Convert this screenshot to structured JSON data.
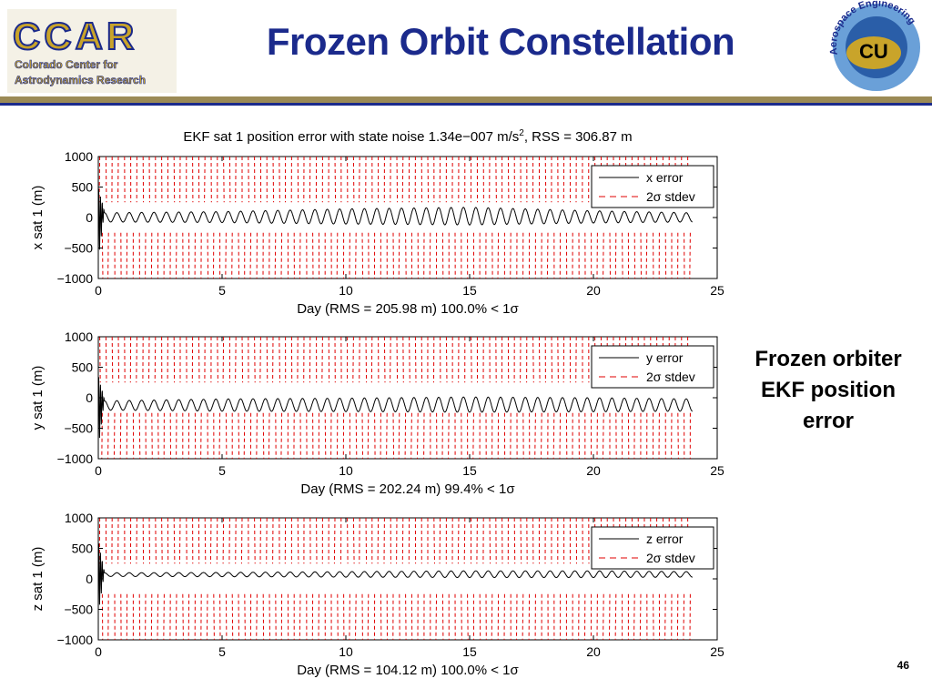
{
  "slide": {
    "title": "Frozen Orbit Constellation",
    "caption_lines": [
      "Frozen orbiter",
      "EKF position",
      "error"
    ],
    "page_number": "46"
  },
  "logos": {
    "ccar": {
      "name": "CCAR",
      "subtitle_lines": [
        "Colorado Center for",
        "Astrodynamics Research"
      ]
    },
    "cu": {
      "initials": "CU",
      "ring_text": "Aerospace Engineering"
    }
  },
  "colors": {
    "title_blue": "#1b2a8c",
    "gold": "#c9a42a",
    "error_line": "#000000",
    "stdev_line": "#e00000"
  },
  "figure": {
    "title_main": "EKF sat 1 position error with state noise 1.34e−007 m/s",
    "title_sup": "2",
    "title_tail": ", RSS = 306.87 m"
  },
  "chart_data": [
    {
      "type": "line",
      "ylabel": "x sat 1 (m)",
      "xlabel": "Day (RMS = 205.98 m) 100.0% < 1σ",
      "xlim": [
        0,
        25
      ],
      "ylim": [
        -1000,
        1000
      ],
      "x_ticks": [
        "0",
        "5",
        "10",
        "15",
        "20",
        "25"
      ],
      "y_ticks": [
        "1000",
        "500",
        "0",
        "−500",
        "−1000"
      ],
      "grid": false,
      "legend_position": "top-right",
      "series": [
        {
          "name": "x error",
          "style": "solid",
          "day_start": 0,
          "day_end": 24,
          "oscillation_period_days": 0.5,
          "envelope_points": [
            [
              0,
              150
            ],
            [
              5,
              180
            ],
            [
              10,
              250
            ],
            [
              15,
              290
            ],
            [
              20,
              200
            ],
            [
              24,
              150
            ]
          ],
          "offset": -20
        },
        {
          "name": "2σ stdev",
          "style": "dashed",
          "day_start": 0,
          "day_end": 24,
          "band_upper": [
            [
              0,
              1000
            ],
            [
              24,
              300
            ]
          ],
          "band_lower": [
            [
              0,
              -200
            ],
            [
              24,
              -1000
            ]
          ]
        }
      ]
    },
    {
      "type": "line",
      "ylabel": "y sat 1 (m)",
      "xlabel": "Day (RMS = 202.24 m) 99.4% < 1σ",
      "xlim": [
        0,
        25
      ],
      "ylim": [
        -1000,
        1000
      ],
      "x_ticks": [
        "0",
        "5",
        "10",
        "15",
        "20",
        "25"
      ],
      "y_ticks": [
        "1000",
        "500",
        "0",
        "−500",
        "−1000"
      ],
      "grid": false,
      "legend_position": "top-right",
      "series": [
        {
          "name": "y error",
          "style": "solid",
          "day_start": 0,
          "day_end": 24,
          "oscillation_period_days": 0.5,
          "envelope_points": [
            [
              0,
              150
            ],
            [
              5,
              200
            ],
            [
              10,
              220
            ],
            [
              15,
              250
            ],
            [
              20,
              230
            ],
            [
              24,
              200
            ]
          ],
          "offset": -150
        },
        {
          "name": "2σ stdev",
          "style": "dashed",
          "day_start": 0,
          "day_end": 24,
          "band_upper": [
            [
              0,
              1000
            ],
            [
              24,
              300
            ]
          ],
          "band_lower": [
            [
              0,
              -200
            ],
            [
              24,
              -1000
            ]
          ]
        }
      ]
    },
    {
      "type": "line",
      "ylabel": "z sat 1 (m)",
      "xlabel": "Day (RMS = 104.12 m) 100.0% < 1σ",
      "xlim": [
        0,
        25
      ],
      "ylim": [
        -1000,
        1000
      ],
      "x_ticks": [
        "0",
        "5",
        "10",
        "15",
        "20",
        "25"
      ],
      "y_ticks": [
        "1000",
        "500",
        "0",
        "−500",
        "−1000"
      ],
      "grid": false,
      "legend_position": "top-right",
      "series": [
        {
          "name": "z error",
          "style": "solid",
          "day_start": 0,
          "day_end": 24,
          "oscillation_period_days": 0.5,
          "envelope_points": [
            [
              0,
              60
            ],
            [
              5,
              70
            ],
            [
              10,
              90
            ],
            [
              15,
              110
            ],
            [
              20,
              110
            ],
            [
              24,
              90
            ]
          ],
          "offset": 60
        },
        {
          "name": "2σ stdev",
          "style": "dashed",
          "day_start": 0,
          "day_end": 24,
          "band_upper": [
            [
              0,
              1000
            ],
            [
              24,
              300
            ]
          ],
          "band_lower": [
            [
              0,
              -200
            ],
            [
              24,
              -1000
            ]
          ]
        }
      ]
    }
  ]
}
